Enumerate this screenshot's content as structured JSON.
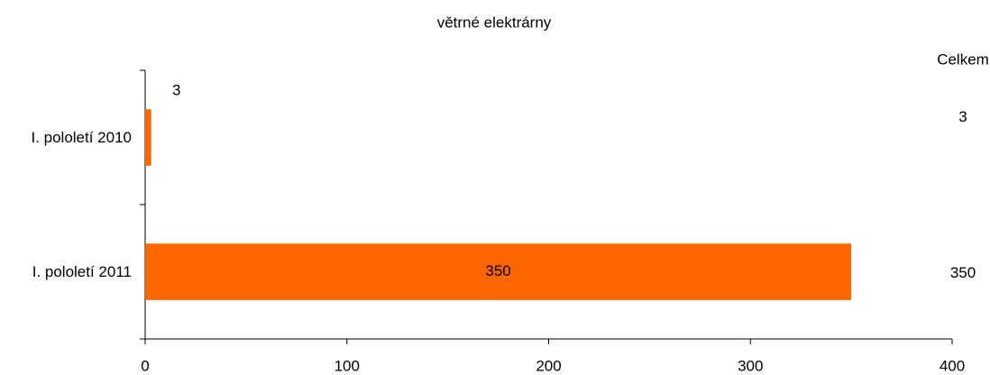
{
  "chart_data": {
    "type": "bar",
    "orientation": "horizontal",
    "title": "větrné elektrárny",
    "total_header": "Celkem",
    "categories": [
      "I. pololetí 2010",
      "I. pololetí 2011"
    ],
    "values": [
      3,
      350
    ],
    "color": "#ff6600",
    "xlim": [
      0,
      400
    ],
    "xticks": [
      0,
      100,
      200,
      300,
      400
    ],
    "grid": false
  }
}
